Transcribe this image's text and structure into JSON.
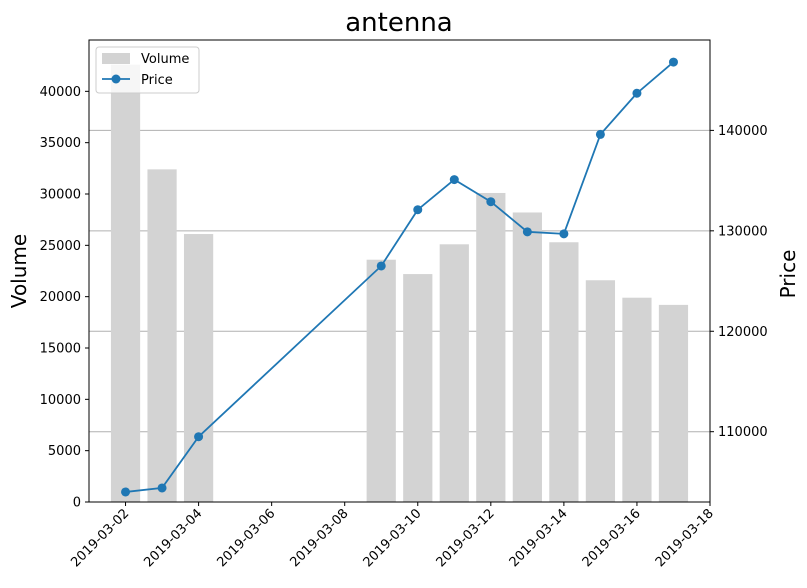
{
  "chart_data": {
    "type": "bar+line",
    "title": "antenna",
    "ylabel_left": "Volume",
    "ylabel_right": "Price",
    "xlabel": "",
    "x_ticks": [
      "2019-03-02",
      "2019-03-04",
      "2019-03-06",
      "2019-03-08",
      "2019-03-10",
      "2019-03-12",
      "2019-03-14",
      "2019-03-16",
      "2019-03-18"
    ],
    "y_left_ticks": [
      0,
      5000,
      10000,
      15000,
      20000,
      25000,
      30000,
      35000,
      40000
    ],
    "y_right_ticks": [
      110000,
      120000,
      130000,
      140000
    ],
    "x_range": [
      "2019-03-01",
      "2019-03-18"
    ],
    "y_left_range": [
      0,
      45000
    ],
    "y_right_range": [
      103000,
      149000
    ],
    "grid": "horizontal, right axis",
    "legend_position": "top-left",
    "series": [
      {
        "name": "Volume",
        "kind": "bar",
        "color": "#d3d3d3",
        "axis": "left",
        "points": [
          {
            "x": "2019-03-02",
            "y": 42600
          },
          {
            "x": "2019-03-03",
            "y": 32400
          },
          {
            "x": "2019-03-04",
            "y": 26100
          },
          {
            "x": "2019-03-09",
            "y": 23600
          },
          {
            "x": "2019-03-10",
            "y": 22200
          },
          {
            "x": "2019-03-11",
            "y": 25100
          },
          {
            "x": "2019-03-12",
            "y": 30100
          },
          {
            "x": "2019-03-13",
            "y": 28200
          },
          {
            "x": "2019-03-14",
            "y": 25300
          },
          {
            "x": "2019-03-15",
            "y": 21600
          },
          {
            "x": "2019-03-16",
            "y": 19900
          },
          {
            "x": "2019-03-17",
            "y": 19200
          }
        ]
      },
      {
        "name": "Price",
        "kind": "line",
        "color": "#1f77b4",
        "axis": "right",
        "points": [
          {
            "x": "2019-03-02",
            "y": 104000
          },
          {
            "x": "2019-03-03",
            "y": 104400
          },
          {
            "x": "2019-03-04",
            "y": 109500
          },
          {
            "x": "2019-03-09",
            "y": 126500
          },
          {
            "x": "2019-03-10",
            "y": 132100
          },
          {
            "x": "2019-03-11",
            "y": 135100
          },
          {
            "x": "2019-03-12",
            "y": 132900
          },
          {
            "x": "2019-03-13",
            "y": 129900
          },
          {
            "x": "2019-03-14",
            "y": 129700
          },
          {
            "x": "2019-03-15",
            "y": 139600
          },
          {
            "x": "2019-03-16",
            "y": 143700
          },
          {
            "x": "2019-03-17",
            "y": 146800
          }
        ]
      }
    ]
  }
}
